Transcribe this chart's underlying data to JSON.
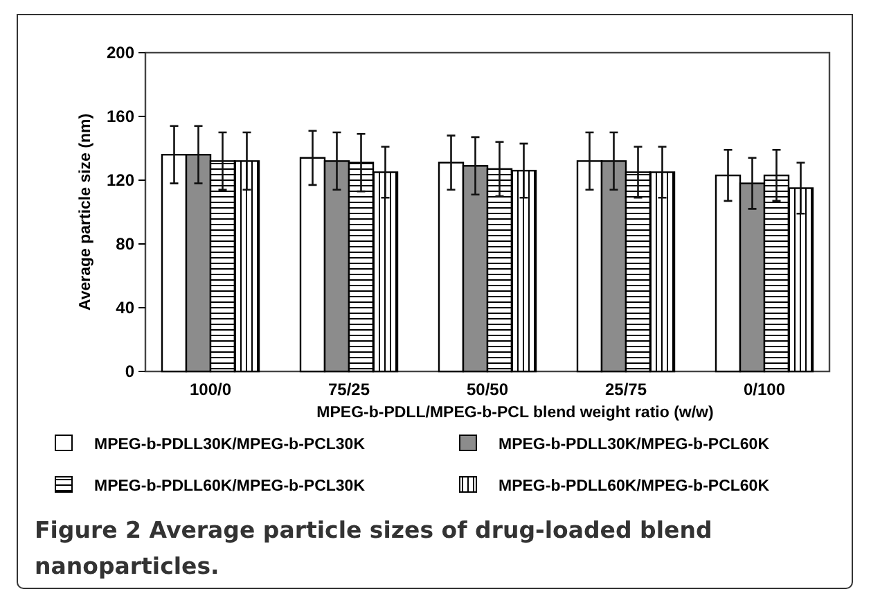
{
  "chart_data": {
    "type": "bar",
    "title": "Figure 2 Average particle sizes of drug-loaded blend nanoparticles.",
    "xlabel": "MPEG-b-PDLL/MPEG-b-PCL blend weight ratio (w/w)",
    "ylabel": "Average particle size (nm)",
    "categories": [
      "100/0",
      "75/25",
      "50/50",
      "25/75",
      "0/100"
    ],
    "series": [
      {
        "name": "MPEG-b-PDLL30K/MPEG-b-PCL30K",
        "color": "#ffffff",
        "values": [
          136,
          134,
          131,
          132,
          123
        ],
        "errors": [
          18,
          17,
          17,
          18,
          16
        ]
      },
      {
        "name": "MPEG-b-PDLL30K/MPEG-b-PCL60K",
        "color": "#8c8c8c",
        "values": [
          136,
          132,
          129,
          132,
          118
        ],
        "errors": [
          18,
          18,
          18,
          18,
          16
        ]
      },
      {
        "name": "MPEG-b-PDLL60K/MPEG-b-PCL30K",
        "color": "#000000",
        "values": [
          132,
          131,
          127,
          125,
          123
        ],
        "errors": [
          18,
          18,
          17,
          16,
          16
        ]
      },
      {
        "name": "MPEG-b-PDLL60K/MPEG-b-PCL60K",
        "color": "#000000",
        "values": [
          132,
          125,
          126,
          125,
          115
        ],
        "errors": [
          18,
          16,
          17,
          16,
          16
        ]
      }
    ],
    "ylim": [
      0,
      200
    ],
    "yticks": [
      0,
      40,
      80,
      120,
      160,
      200
    ],
    "grid": false,
    "legend": "bottom"
  }
}
